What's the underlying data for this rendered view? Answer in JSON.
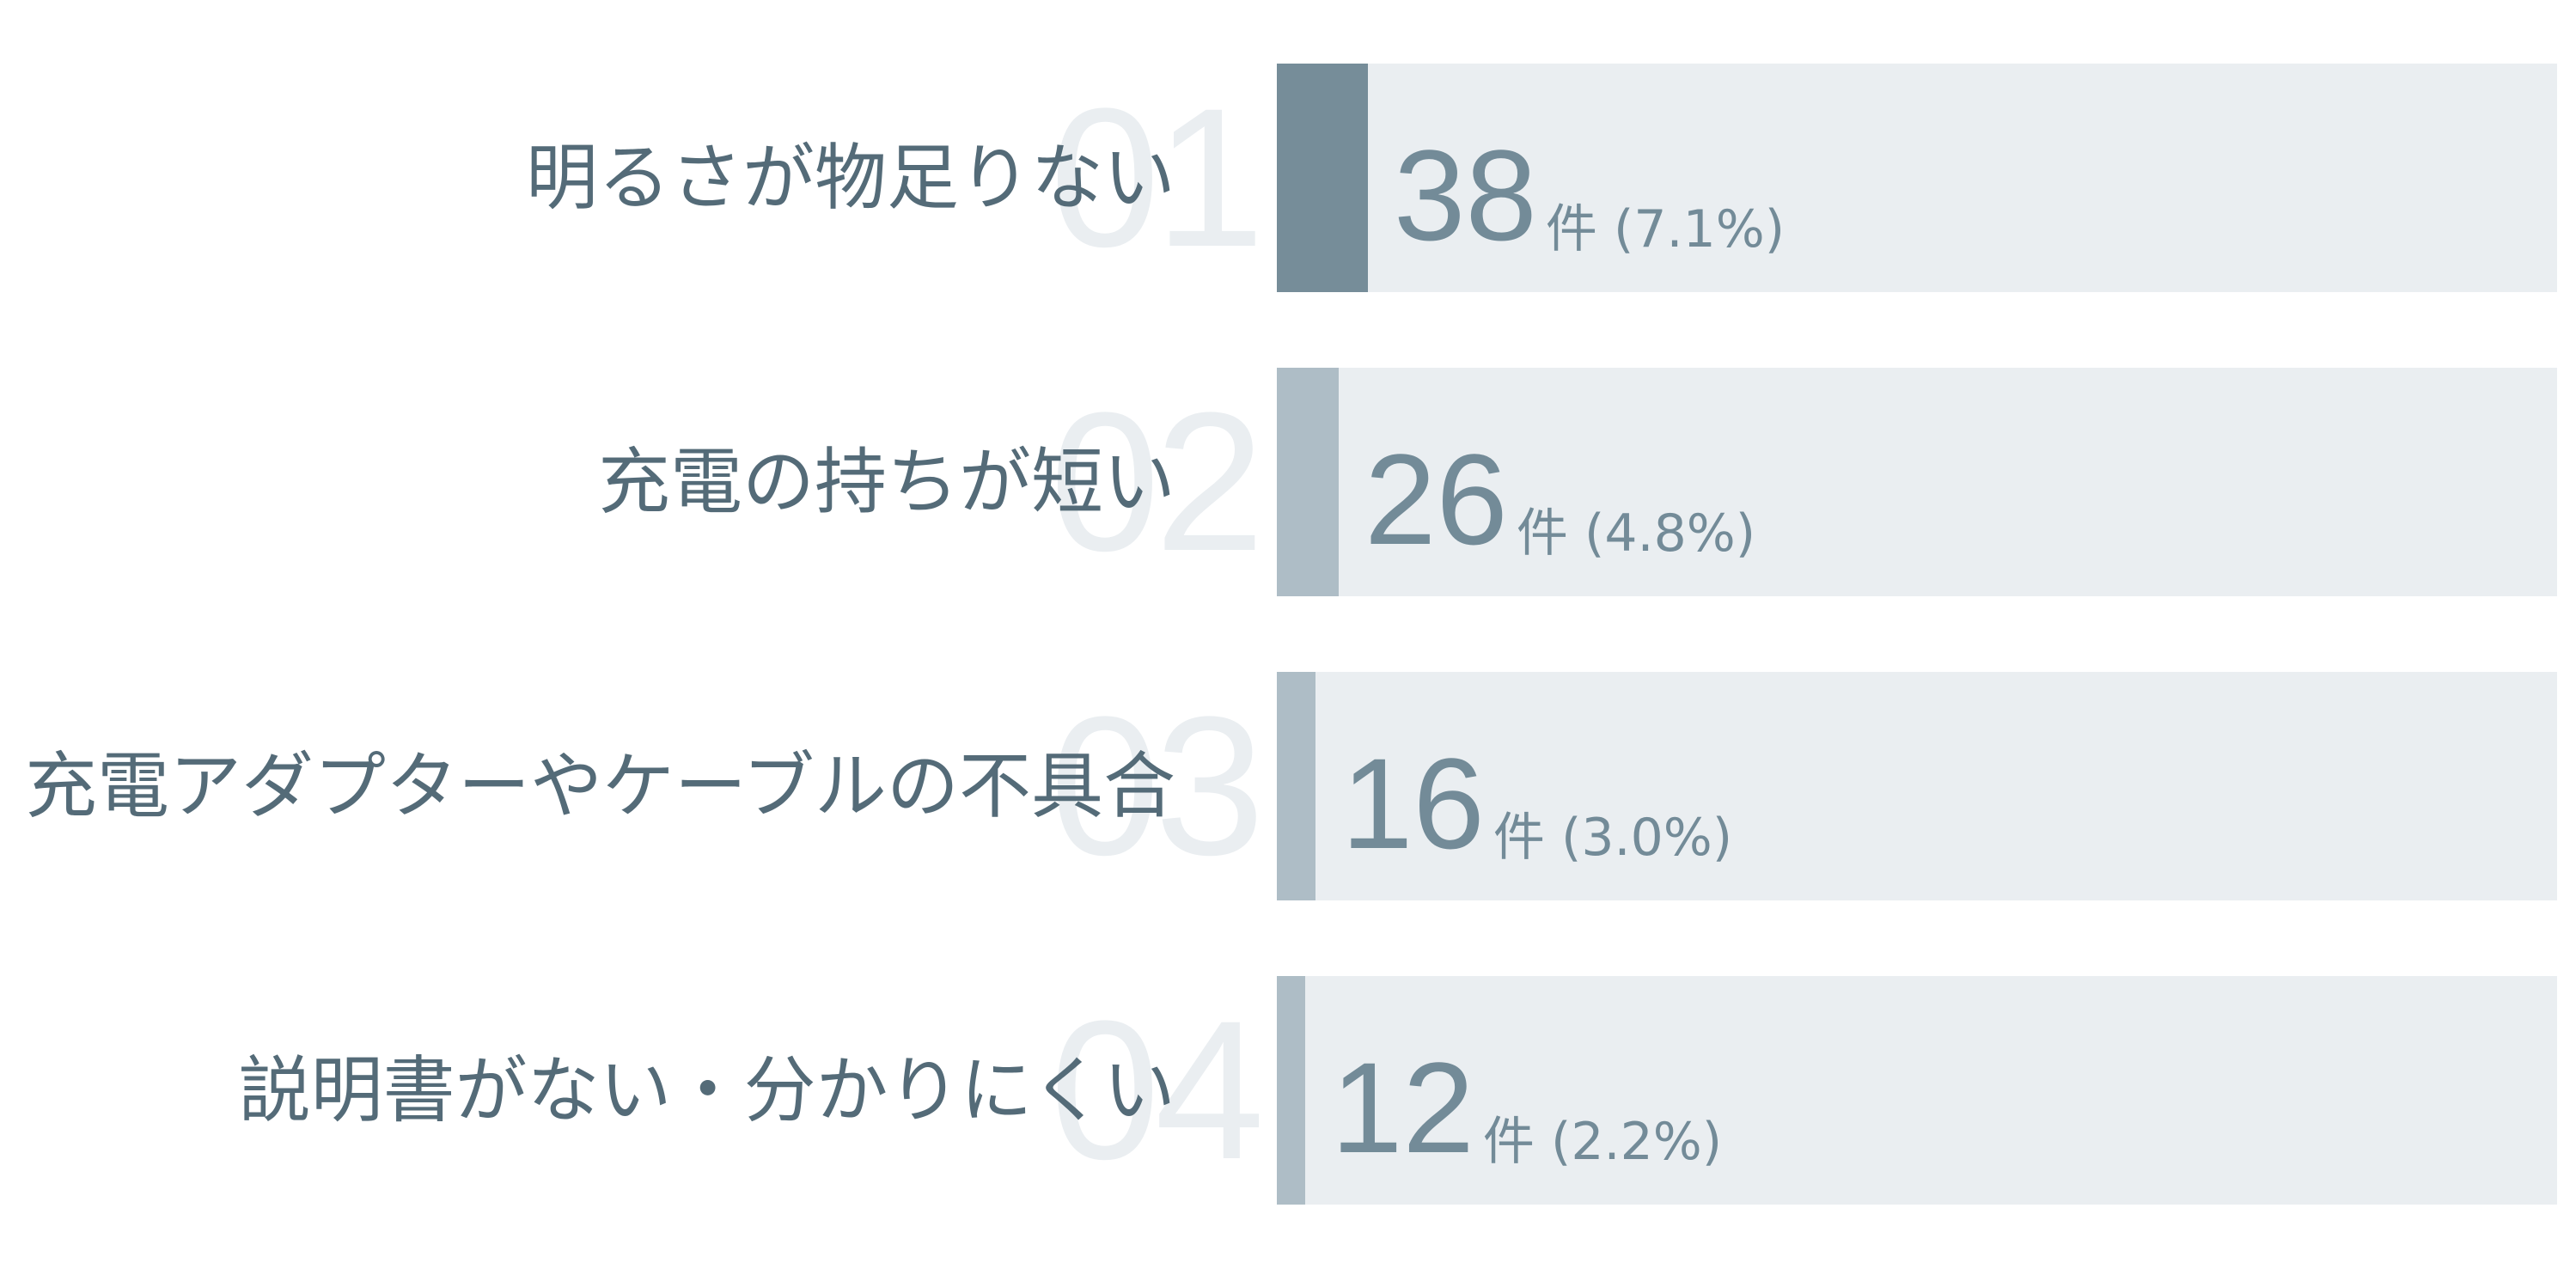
{
  "chart_data": {
    "type": "bar",
    "orientation": "horizontal",
    "categories": [
      "明るさが物足りない",
      "充電の持ちが短い",
      "充電アダプターやケーブルの不具合",
      "説明書がない・分かりにくい"
    ],
    "ranks": [
      "01",
      "02",
      "03",
      "04"
    ],
    "values": [
      38,
      26,
      16,
      12
    ],
    "percent_labels": [
      "(7.1%)",
      "(4.8%)",
      "(3.0%)",
      "(2.2%)"
    ],
    "percent_values": [
      7.1,
      4.8,
      3.0,
      2.2
    ],
    "unit": "件",
    "xlim": [
      0,
      100
    ],
    "grid": false,
    "colors": {
      "top_bar": "#768d99",
      "other_bars": "#aebdc6",
      "track": "#eaeef1",
      "label_text": "#546b78",
      "value_text": "#738b98",
      "rank_text": "#eaeef1"
    }
  }
}
